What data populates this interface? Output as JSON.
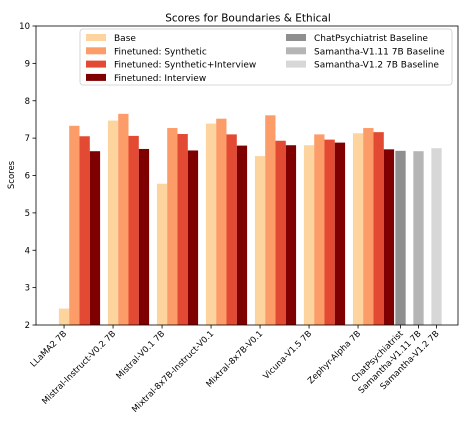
{
  "chart_data": {
    "type": "bar",
    "title": "Scores for Boundaries & Ethical",
    "ylabel": "Scores",
    "xlabel": "",
    "ylim": [
      2,
      10
    ],
    "yticks": [
      2,
      3,
      4,
      5,
      6,
      7,
      8,
      9,
      10
    ],
    "grid": false,
    "legend_placement": "top",
    "categories": [
      "LLaMA2 7B",
      "Mistral-Instruct-V0.2 7B",
      "Mistral-V0.1 7B",
      "Mixtral-8x7B-Instruct-V0.1",
      "Mixtral-8x7B-V0.1",
      "Vicuna-V1.5 7B",
      "Zephyr-Alpha 7B"
    ],
    "series": [
      {
        "name": "Base",
        "color": "#fdd49e",
        "values": [
          2.44,
          7.47,
          5.78,
          7.39,
          6.52,
          6.81,
          7.13
        ]
      },
      {
        "name": "Finetuned: Synthetic",
        "color": "#fc9c68",
        "values": [
          7.33,
          7.65,
          7.27,
          7.52,
          7.61,
          7.1,
          7.27
        ]
      },
      {
        "name": "Finetuned: Synthetic+Interview",
        "color": "#e34a33",
        "values": [
          7.05,
          7.06,
          7.11,
          7.1,
          6.93,
          6.96,
          7.16
        ]
      },
      {
        "name": "Finetuned: Interview",
        "color": "#7f0000",
        "values": [
          6.65,
          6.71,
          6.67,
          6.8,
          6.81,
          6.88,
          6.7
        ]
      }
    ],
    "baselines": [
      {
        "name": "ChatPsychiatrist Baseline",
        "label": "ChatPsychiatrist",
        "color": "#8f8f8f",
        "value": 6.66
      },
      {
        "name": "Samantha-V1.11 7B Baseline",
        "label": "Samantha-V1.11 7B",
        "color": "#b5b5b5",
        "value": 6.65
      },
      {
        "name": "Samantha-V1.2 7B Baseline",
        "label": "Samantha-V1.2 7B",
        "color": "#d7d7d7",
        "value": 6.73
      }
    ]
  }
}
